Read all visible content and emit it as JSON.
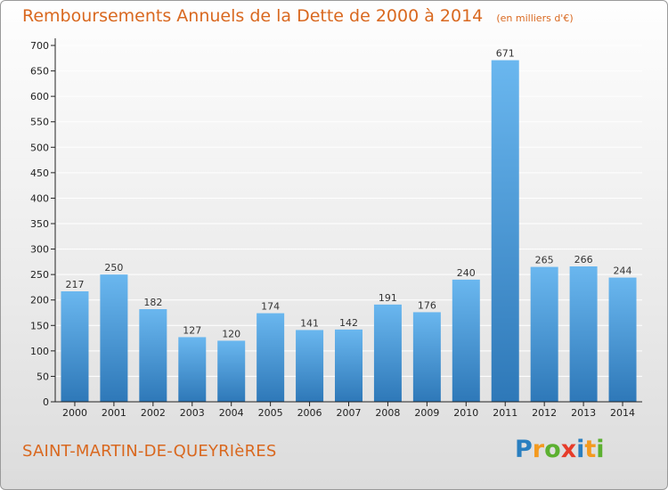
{
  "header": {
    "title": "Remboursements Annuels de la Dette de 2000 à 2014",
    "unit": "(en milliers d'€)"
  },
  "footer": {
    "commune": "SAINT-MARTIN-DE-QUEYRIèRES",
    "logo_letters": [
      "P",
      "r",
      "o",
      "x",
      "i",
      "t",
      "i"
    ],
    "logo_colors": [
      "#2a7fc0",
      "#f39a1f",
      "#5cb030",
      "#e63c2a",
      "#2a7fc0",
      "#f39a1f",
      "#5cb030"
    ]
  },
  "colors": {
    "bar_top": "#6ab7ef",
    "bar_bottom": "#2e78b8",
    "axis": "#222222",
    "grid": "#ffffff",
    "title": "#d9681f"
  },
  "chart_data": {
    "type": "bar",
    "categories": [
      "2000",
      "2001",
      "2002",
      "2003",
      "2004",
      "2005",
      "2006",
      "2007",
      "2008",
      "2009",
      "2010",
      "2011",
      "2012",
      "2013",
      "2014"
    ],
    "values": [
      217,
      250,
      182,
      127,
      120,
      174,
      141,
      142,
      191,
      176,
      240,
      671,
      265,
      266,
      244
    ],
    "title": "Remboursements Annuels de la Dette de 2000 à 2014",
    "xlabel": "",
    "ylabel": "",
    "ylim": [
      0,
      700
    ],
    "yticks": [
      0,
      50,
      100,
      150,
      200,
      250,
      300,
      350,
      400,
      450,
      500,
      550,
      600,
      650,
      700
    ],
    "grid": true,
    "data_labels": true
  }
}
